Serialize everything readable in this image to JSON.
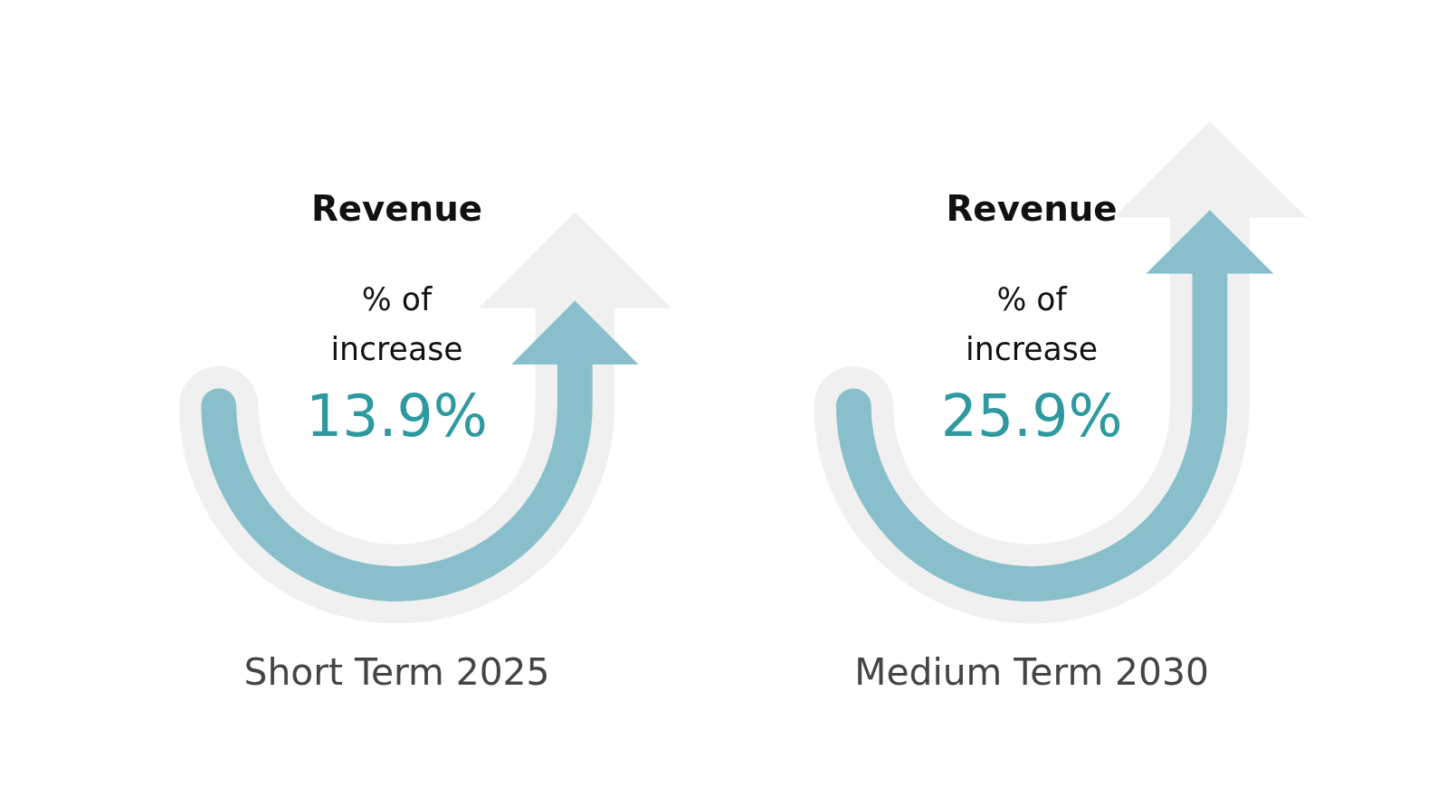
{
  "chart_data": [
    {
      "type": "other",
      "title": "Revenue",
      "subtitle": "% of increase",
      "categories": [
        "Short Term 2025"
      ],
      "values": [
        13.9
      ],
      "value_labels": [
        "13.9%"
      ],
      "color": "#88bfca"
    },
    {
      "type": "other",
      "title": "Revenue",
      "subtitle": "% of increase",
      "categories": [
        "Medium Term 2030"
      ],
      "values": [
        25.9
      ],
      "value_labels": [
        "25.9%"
      ],
      "color": "#88bfca"
    }
  ]
}
